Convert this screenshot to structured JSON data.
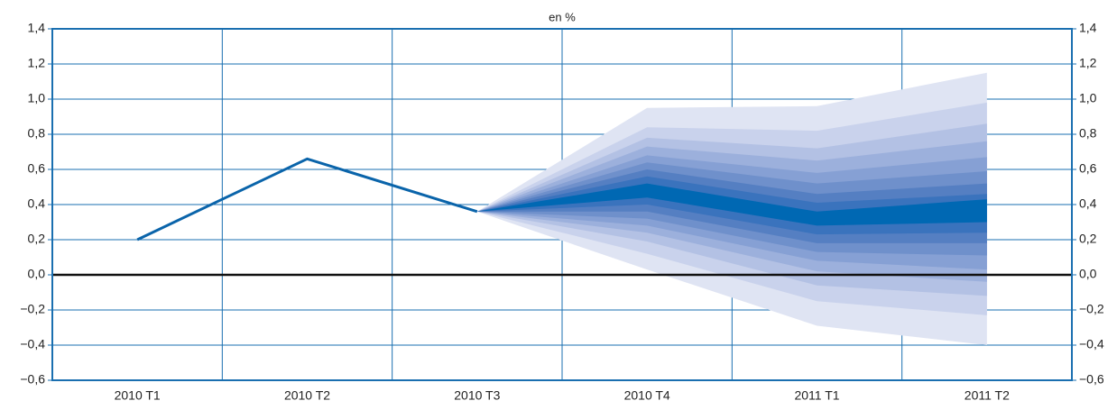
{
  "chart_data": {
    "type": "fan",
    "subtitle": "en %",
    "categories": [
      "2010 T1",
      "2010 T2",
      "2010 T3",
      "2010 T4",
      "2011 T1",
      "2011 T2"
    ],
    "series": [
      {
        "name": null,
        "color": "#0a64aa",
        "values": [
          0.2,
          0.66,
          0.36,
          null,
          null,
          null
        ]
      }
    ],
    "bands": [
      {
        "color": "#dfe4f3",
        "lower": [
          null,
          null,
          0.36,
          0.03,
          -0.29,
          -0.4
        ],
        "upper": [
          null,
          null,
          0.36,
          0.95,
          0.96,
          1.15
        ]
      },
      {
        "color": "#c9d2ec",
        "lower": [
          null,
          null,
          0.36,
          0.12,
          -0.15,
          -0.23
        ],
        "upper": [
          null,
          null,
          0.36,
          0.84,
          0.82,
          0.98
        ]
      },
      {
        "color": "#b3c1e4",
        "lower": [
          null,
          null,
          0.36,
          0.19,
          -0.06,
          -0.12
        ],
        "upper": [
          null,
          null,
          0.36,
          0.78,
          0.72,
          0.86
        ]
      },
      {
        "color": "#9cb0dc",
        "lower": [
          null,
          null,
          0.36,
          0.24,
          0.02,
          -0.04
        ],
        "upper": [
          null,
          null,
          0.36,
          0.73,
          0.65,
          0.76
        ]
      },
      {
        "color": "#86a0d4",
        "lower": [
          null,
          null,
          0.36,
          0.28,
          0.08,
          0.03
        ],
        "upper": [
          null,
          null,
          0.36,
          0.68,
          0.58,
          0.67
        ]
      },
      {
        "color": "#6f90cb",
        "lower": [
          null,
          null,
          0.36,
          0.32,
          0.13,
          0.11
        ],
        "upper": [
          null,
          null,
          0.36,
          0.64,
          0.52,
          0.59
        ]
      },
      {
        "color": "#557fc2",
        "lower": [
          null,
          null,
          0.36,
          0.36,
          0.18,
          0.18
        ],
        "upper": [
          null,
          null,
          0.36,
          0.6,
          0.46,
          0.52
        ]
      },
      {
        "color": "#3a73bd",
        "lower": [
          null,
          null,
          0.36,
          0.4,
          0.23,
          0.24
        ],
        "upper": [
          null,
          null,
          0.36,
          0.56,
          0.41,
          0.46
        ]
      },
      {
        "color": "#0068b3",
        "lower": [
          null,
          null,
          0.36,
          0.44,
          0.28,
          0.3
        ],
        "upper": [
          null,
          null,
          0.36,
          0.52,
          0.36,
          0.43
        ]
      }
    ],
    "ylim": [
      -0.6,
      1.4
    ],
    "yticks": [
      {
        "value": -0.6,
        "label": "−0,6"
      },
      {
        "value": -0.4,
        "label": "−0,4"
      },
      {
        "value": -0.2,
        "label": "−0,2"
      },
      {
        "value": 0,
        "label": "0,0"
      },
      {
        "value": 0.2,
        "label": "0,2"
      },
      {
        "value": 0.4,
        "label": "0,4"
      },
      {
        "value": 0.6,
        "label": "0,6"
      },
      {
        "value": 0.8,
        "label": "0,8"
      },
      {
        "value": 1,
        "label": "1,0"
      },
      {
        "value": 1.2,
        "label": "1,2"
      },
      {
        "value": 1.4,
        "label": "1,4"
      }
    ],
    "grid": true
  }
}
